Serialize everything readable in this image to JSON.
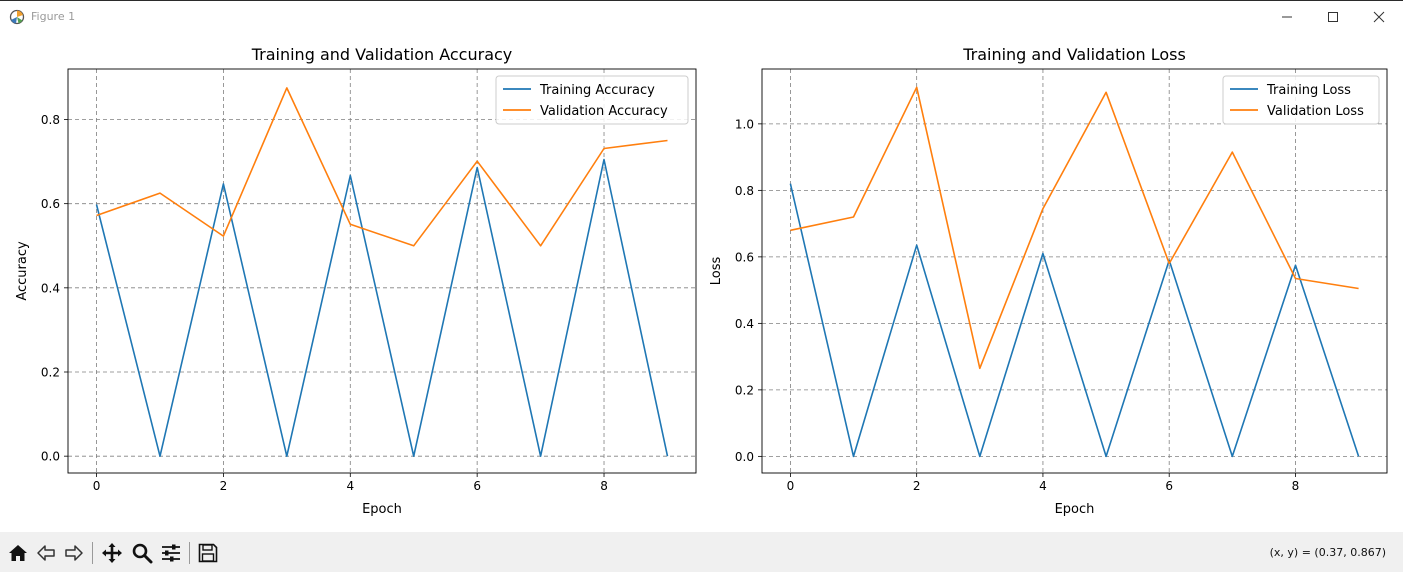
{
  "window": {
    "title": "Figure 1",
    "icon": "matplotlib-icon",
    "controls": [
      "minimize-icon",
      "maximize-icon",
      "close-icon"
    ]
  },
  "toolbar": {
    "tools": [
      "home-icon",
      "back-arrow-icon",
      "forward-arrow-icon",
      "pan-move-icon",
      "zoom-magnifier-icon",
      "configure-subplots-icon",
      "save-floppy-icon"
    ],
    "coords_text": "(x, y) = (0.37, 0.867)"
  },
  "colors": {
    "training": "#1f77b4",
    "validation": "#ff7f0e",
    "grid": "#808080"
  },
  "chart_data": [
    {
      "type": "line",
      "title": "Training and Validation Accuracy",
      "xlabel": "Epoch",
      "ylabel": "Accuracy",
      "x": [
        0,
        1,
        2,
        3,
        4,
        5,
        6,
        7,
        8,
        9
      ],
      "xticks": [
        "0",
        "2",
        "4",
        "6",
        "8"
      ],
      "yticks": [
        "0.0",
        "0.2",
        "0.4",
        "0.6",
        "0.8"
      ],
      "xlim": [
        -0.45,
        9.45
      ],
      "ylim": [
        -0.04,
        0.92
      ],
      "grid": true,
      "legend_position": "top-right",
      "series": [
        {
          "name": "Training Accuracy",
          "values": [
            0.598,
            0.0,
            0.647,
            0.0,
            0.667,
            0.0,
            0.686,
            0.0,
            0.705,
            0.0
          ]
        },
        {
          "name": "Validation Accuracy",
          "values": [
            0.572,
            0.625,
            0.523,
            0.875,
            0.551,
            0.5,
            0.701,
            0.5,
            0.731,
            0.75
          ]
        }
      ]
    },
    {
      "type": "line",
      "title": "Training and Validation Loss",
      "xlabel": "Epoch",
      "ylabel": "Loss",
      "x": [
        0,
        1,
        2,
        3,
        4,
        5,
        6,
        7,
        8,
        9
      ],
      "xticks": [
        "0",
        "2",
        "4",
        "6",
        "8"
      ],
      "yticks": [
        "0.0",
        "0.2",
        "0.4",
        "0.6",
        "0.8",
        "1.0"
      ],
      "xlim": [
        -0.45,
        9.45
      ],
      "ylim": [
        -0.05,
        1.165
      ],
      "grid": true,
      "legend_position": "top-right",
      "series": [
        {
          "name": "Training Loss",
          "values": [
            0.82,
            0.0,
            0.635,
            0.0,
            0.61,
            0.0,
            0.59,
            0.0,
            0.575,
            0.0
          ]
        },
        {
          "name": "Validation Loss",
          "values": [
            0.68,
            0.72,
            1.11,
            0.265,
            0.745,
            1.095,
            0.58,
            0.915,
            0.535,
            0.505
          ]
        }
      ]
    }
  ]
}
